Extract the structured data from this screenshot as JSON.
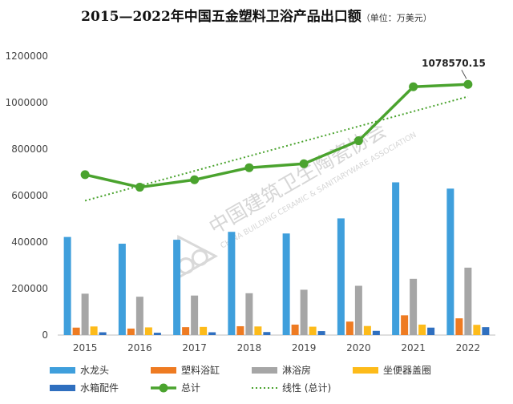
{
  "chart_data": {
    "type": "bar",
    "title": "2015—2022年中国五金塑料卫浴产品出口额",
    "subtitle": "（单位：万美元）",
    "categories": [
      "2015",
      "2016",
      "2017",
      "2018",
      "2019",
      "2020",
      "2021",
      "2022"
    ],
    "ylim": [
      0,
      1200000
    ],
    "yticks": [
      "0",
      "200000",
      "400000",
      "600000",
      "800000",
      "1000000",
      "1200000"
    ],
    "grid": false,
    "legend_position": "bottom",
    "series": [
      {
        "name": "水龙头",
        "type": "bar",
        "color": "#3f9fdc",
        "values": [
          422000,
          393000,
          410000,
          444000,
          437000,
          502000,
          657000,
          630000
        ]
      },
      {
        "name": "塑料浴缸",
        "type": "bar",
        "color": "#ee7b22",
        "values": [
          32000,
          28000,
          34000,
          38000,
          45000,
          58000,
          85000,
          72000
        ]
      },
      {
        "name": "淋浴房",
        "type": "bar",
        "color": "#a6a6a6",
        "values": [
          178000,
          165000,
          170000,
          180000,
          195000,
          212000,
          242000,
          290000
        ]
      },
      {
        "name": "坐便器盖圈",
        "type": "bar",
        "color": "#fdbb1a",
        "values": [
          37000,
          33000,
          35000,
          37000,
          36000,
          39000,
          45000,
          44000
        ]
      },
      {
        "name": "水箱配件",
        "type": "bar",
        "color": "#2f6fbf",
        "values": [
          12000,
          10000,
          12000,
          13000,
          17000,
          18000,
          32000,
          34000
        ]
      },
      {
        "name": "总计",
        "type": "line",
        "color": "#4aa32e",
        "values": [
          690000,
          636000,
          668000,
          720000,
          737000,
          836000,
          1068000,
          1078570.15
        ]
      },
      {
        "name": "线性 (总计)",
        "type": "trendline",
        "color": "#4aa32e",
        "values": [
          578000,
          642000,
          706000,
          770000,
          834000,
          898000,
          962000,
          1026000
        ]
      }
    ],
    "annotations": [
      {
        "text": "1078570.15",
        "category": "2022",
        "series": "总计"
      }
    ]
  },
  "watermark": {
    "name_cn": "中国建筑卫生陶瓷协会",
    "name_en": "CHINA BUILDING CERAMIC & SANITARYWARE ASSOCIATION"
  }
}
